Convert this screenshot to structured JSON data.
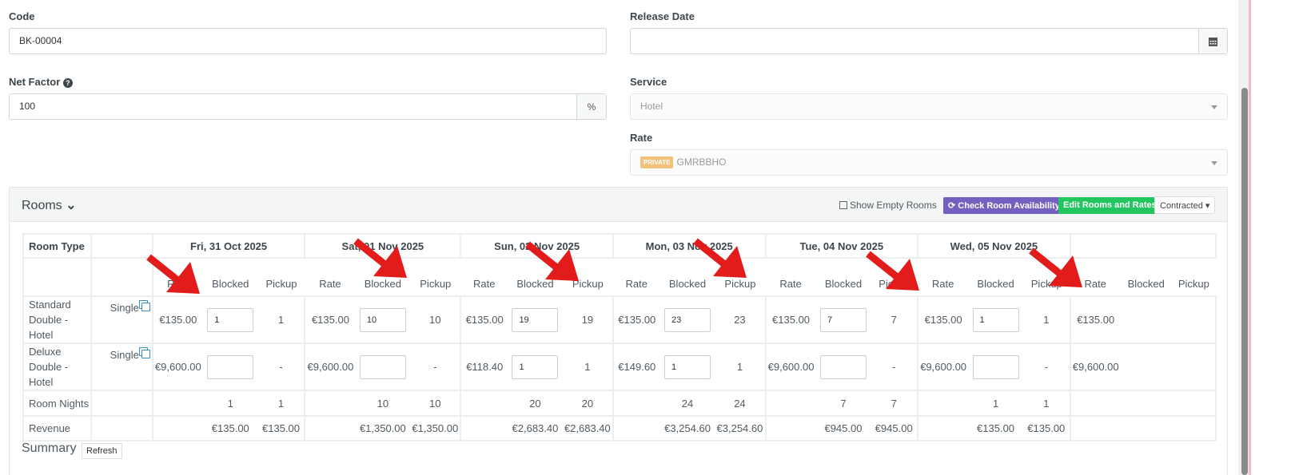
{
  "form": {
    "code": {
      "label": "Code",
      "value": "BK-00004"
    },
    "release_date": {
      "label": "Release Date",
      "value": ""
    },
    "net_factor": {
      "label": "Net Factor",
      "value": "100",
      "addon": "%"
    },
    "service": {
      "label": "Service",
      "value": "Hotel"
    },
    "rate": {
      "label": "Rate",
      "badge": "PRIVATE",
      "value": "GMRBBHO",
      "badge_color": "#f3c27a"
    }
  },
  "rooms": {
    "title": "Rooms",
    "show_empty_label": "Show Empty Rooms",
    "check_availability_label": "Check Room Availability",
    "edit_rooms_label": "Edit Rooms and Rates",
    "mode_select": "Contracted",
    "colors": {
      "check": "#7460c0",
      "edit": "#22c55e"
    },
    "table": {
      "room_type_header": "Room Type",
      "sub_headers": {
        "rate": "Rate",
        "blocked": "Blocked",
        "pickup": "Pickup"
      },
      "days": [
        {
          "date": "Fri, 31 Oct 2025",
          "r1": {
            "rate": "€135.00",
            "blocked": "1",
            "pickup": "1"
          },
          "r2": {
            "rate": "€9,600.00",
            "blocked": "",
            "pickup": "-"
          },
          "nights": {
            "blocked": "1",
            "pickup": "1"
          },
          "revenue": {
            "blocked": "€135.00",
            "pickup": "€135.00"
          }
        },
        {
          "date": "Sat, 01 Nov 2025",
          "r1": {
            "rate": "€135.00",
            "blocked": "10",
            "pickup": "10"
          },
          "r2": {
            "rate": "€9,600.00",
            "blocked": "",
            "pickup": "-"
          },
          "nights": {
            "blocked": "10",
            "pickup": "10"
          },
          "revenue": {
            "blocked": "€1,350.00",
            "pickup": "€1,350.00"
          }
        },
        {
          "date": "Sun, 02 Nov 2025",
          "r1": {
            "rate": "€135.00",
            "blocked": "19",
            "pickup": "19"
          },
          "r2": {
            "rate": "€118.40",
            "blocked": "1",
            "pickup": "1"
          },
          "nights": {
            "blocked": "20",
            "pickup": "20"
          },
          "revenue": {
            "blocked": "€2,683.40",
            "pickup": "€2,683.40"
          }
        },
        {
          "date": "Mon, 03 Nov 2025",
          "r1": {
            "rate": "€135.00",
            "blocked": "23",
            "pickup": "23"
          },
          "r2": {
            "rate": "€149.60",
            "blocked": "1",
            "pickup": "1"
          },
          "nights": {
            "blocked": "24",
            "pickup": "24"
          },
          "revenue": {
            "blocked": "€3,254.60",
            "pickup": "€3,254.60"
          }
        },
        {
          "date": "Tue, 04 Nov 2025",
          "r1": {
            "rate": "€135.00",
            "blocked": "7",
            "pickup": "7"
          },
          "r2": {
            "rate": "€9,600.00",
            "blocked": "",
            "pickup": "-"
          },
          "nights": {
            "blocked": "7",
            "pickup": "7"
          },
          "revenue": {
            "blocked": "€945.00",
            "pickup": "€945.00"
          }
        },
        {
          "date": "Wed, 05 Nov 2025",
          "r1": {
            "rate": "€135.00",
            "blocked": "1",
            "pickup": "1"
          },
          "r2": {
            "rate": "€9,600.00",
            "blocked": "",
            "pickup": "-"
          },
          "nights": {
            "blocked": "1",
            "pickup": "1"
          },
          "revenue": {
            "blocked": "€135.00",
            "pickup": "€135.00"
          }
        },
        {
          "date": "",
          "r1": {
            "rate": "€135.00",
            "blocked": "",
            "pickup": ""
          },
          "r2": {
            "rate": "€9,600.00",
            "blocked": "",
            "pickup": ""
          },
          "nights": {
            "blocked": "",
            "pickup": ""
          },
          "revenue": {
            "blocked": "",
            "pickup": ""
          }
        }
      ],
      "rows": [
        {
          "room_type": "Standard Double - Hotel",
          "occupancy": "Single"
        },
        {
          "room_type": "Deluxe Double - Hotel",
          "occupancy": "Single"
        }
      ],
      "room_nights_label": "Room Nights",
      "revenue_label": "Revenue"
    }
  },
  "summary": {
    "title": "Summary",
    "refresh_label": "Refresh"
  }
}
